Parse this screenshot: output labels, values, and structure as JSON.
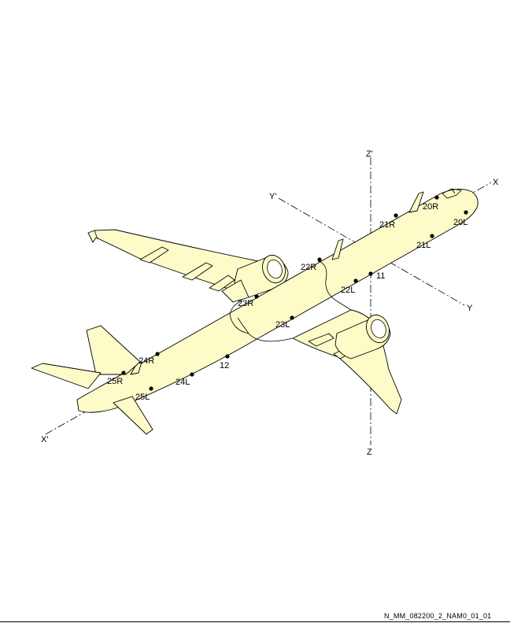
{
  "axes": {
    "x_pos": "X",
    "x_neg": "X'",
    "y_pos": "Y",
    "y_neg": "Y'",
    "z_up": "Z'",
    "z_down": "Z"
  },
  "points": [
    {
      "id": "20R",
      "label": "20R"
    },
    {
      "id": "20L",
      "label": "20L"
    },
    {
      "id": "21R",
      "label": "21R"
    },
    {
      "id": "21L",
      "label": "21L"
    },
    {
      "id": "22R",
      "label": "22R"
    },
    {
      "id": "22L",
      "label": "22L"
    },
    {
      "id": "11",
      "label": "11"
    },
    {
      "id": "23R",
      "label": "23R"
    },
    {
      "id": "23L",
      "label": "23L"
    },
    {
      "id": "24R",
      "label": "24R"
    },
    {
      "id": "24L",
      "label": "24L"
    },
    {
      "id": "12",
      "label": "12"
    },
    {
      "id": "25R",
      "label": "25R"
    },
    {
      "id": "25L",
      "label": "25L"
    }
  ],
  "reference_code": "N_MM_082200_2_NAM0_01_01",
  "colors": {
    "aircraft_fill": "#fdfbc8",
    "outline": "#000000"
  }
}
